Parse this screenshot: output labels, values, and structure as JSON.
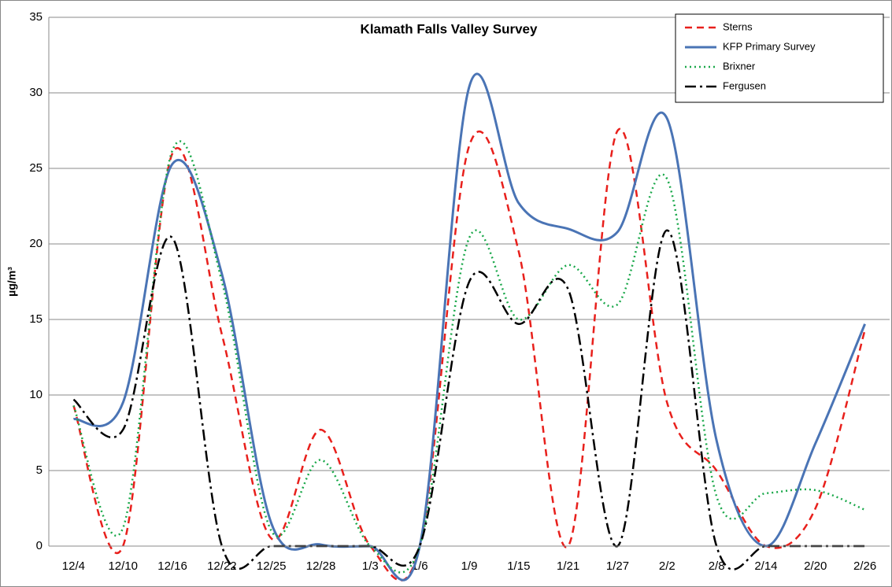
{
  "chart_data": {
    "type": "line",
    "title": "Klamath Falls Valley Survey",
    "y_label": "µg/m³",
    "categories": [
      "12/4",
      "12/10",
      "12/16",
      "12/22",
      "12/25",
      "12/28",
      "1/3",
      "1/6",
      "1/9",
      "1/15",
      "1/21",
      "1/27",
      "2/2",
      "2/8",
      "2/14",
      "2/20",
      "2/26"
    ],
    "series": [
      {
        "name": "Sterns",
        "color": "#e8201c",
        "values": [
          9.3,
          0,
          26,
          14,
          0.5,
          7.7,
          0,
          0,
          26.5,
          19.5,
          0,
          27.5,
          9.5,
          5,
          0,
          2.5,
          14.3
        ]
      },
      {
        "name": "KFP Primary Survey",
        "color": "#4a74b5",
        "values": [
          8.4,
          9.5,
          25.3,
          18,
          1.5,
          0.1,
          0,
          0,
          30.4,
          22.7,
          21,
          20.8,
          28.3,
          7,
          0,
          6.8,
          14.7
        ]
      },
      {
        "name": "Brixner",
        "color": "#1aa84a",
        "values": [
          9.3,
          1.2,
          26.2,
          17.5,
          1,
          5.7,
          0,
          0,
          20.4,
          15,
          18.6,
          16,
          24.3,
          3.3,
          3.5,
          3.7,
          2.4
        ]
      },
      {
        "name": "Fergusen",
        "color": "#000000",
        "values": [
          9.7,
          7.7,
          20.4,
          0,
          0,
          0,
          0,
          0,
          17.5,
          14.7,
          17,
          0,
          20.9,
          0,
          0,
          0,
          0
        ]
      }
    ],
    "ylim": [
      0,
      35
    ],
    "yticks": [
      0,
      5,
      10,
      15,
      20,
      25,
      30,
      35
    ],
    "grid": true,
    "legend": "top-right"
  }
}
